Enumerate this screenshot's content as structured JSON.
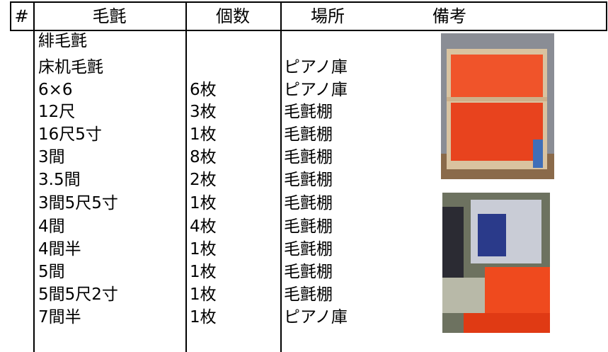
{
  "table": {
    "header": [
      "#",
      "毛氈",
      "個数",
      "場所",
      "備考"
    ],
    "rows": [
      {
        "name": "緋毛氈"
      },
      {
        "name": "床机毛氈",
        "place": "ピアノ庫"
      },
      {
        "name": "6×6",
        "count": "6枚",
        "place": "ピアノ庫"
      },
      {
        "name": "12尺",
        "count": "3枚",
        "place": "毛氈棚"
      },
      {
        "name": "16尺5寸",
        "count": "1枚",
        "place": "毛氈棚"
      },
      {
        "name": "3間",
        "count": "8枚",
        "place": "毛氈棚"
      },
      {
        "name": "3.5間",
        "count": "2枚",
        "place": "毛氈棚"
      },
      {
        "name": "3間5尺5寸",
        "count": "1枚",
        "place": "毛氈棚"
      },
      {
        "name": "4間",
        "count": "4枚",
        "place": "毛氈棚"
      },
      {
        "name": "4間半",
        "count": "1枚",
        "place": "毛氈棚"
      },
      {
        "name": "5間",
        "count": "1枚",
        "place": "毛氈棚"
      },
      {
        "name": "5間5尺2寸",
        "count": "1枚",
        "place": "毛氈棚"
      },
      {
        "name": "7間半",
        "count": "1枚",
        "place": "ピアノ庫"
      }
    ]
  }
}
